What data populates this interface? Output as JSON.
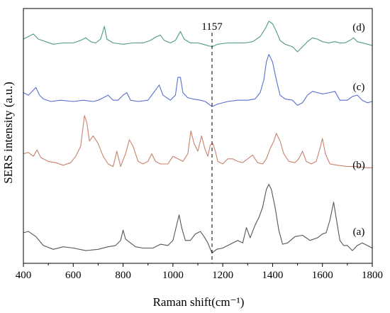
{
  "chart_data": {
    "type": "line",
    "xlabel": "Raman shift(cm⁻¹)",
    "ylabel": "SERS intensity (a.u.)",
    "xlim": [
      400,
      1800
    ],
    "ylim": [
      0,
      100
    ],
    "x_ticks": [
      "400",
      "600",
      "800",
      "1000",
      "1200",
      "1400",
      "1600",
      "1800"
    ],
    "grid": false,
    "annotation": {
      "label": "1157",
      "x": 1157
    },
    "series": [
      {
        "name": "(a)",
        "color": "#555555",
        "points": [
          [
            400,
            12
          ],
          [
            420,
            12.5
          ],
          [
            450,
            10.5
          ],
          [
            480,
            7
          ],
          [
            520,
            5.5
          ],
          [
            560,
            6.5
          ],
          [
            600,
            6
          ],
          [
            650,
            5
          ],
          [
            700,
            5.5
          ],
          [
            740,
            6.5
          ],
          [
            770,
            7
          ],
          [
            790,
            9
          ],
          [
            800,
            13
          ],
          [
            810,
            9.5
          ],
          [
            830,
            8
          ],
          [
            850,
            6.5
          ],
          [
            880,
            6
          ],
          [
            920,
            6
          ],
          [
            950,
            7.5
          ],
          [
            980,
            7
          ],
          [
            1000,
            9
          ],
          [
            1015,
            15
          ],
          [
            1025,
            19
          ],
          [
            1035,
            14
          ],
          [
            1050,
            9
          ],
          [
            1070,
            9
          ],
          [
            1090,
            11.5
          ],
          [
            1110,
            12.5
          ],
          [
            1125,
            10.5
          ],
          [
            1140,
            8
          ],
          [
            1157,
            4
          ],
          [
            1175,
            5.5
          ],
          [
            1200,
            6
          ],
          [
            1230,
            7.5
          ],
          [
            1260,
            9
          ],
          [
            1280,
            8
          ],
          [
            1295,
            14
          ],
          [
            1310,
            10
          ],
          [
            1330,
            15
          ],
          [
            1345,
            18
          ],
          [
            1360,
            22
          ],
          [
            1375,
            29
          ],
          [
            1385,
            31
          ],
          [
            1395,
            29
          ],
          [
            1410,
            22
          ],
          [
            1425,
            13
          ],
          [
            1440,
            7.5
          ],
          [
            1460,
            8
          ],
          [
            1490,
            10.5
          ],
          [
            1520,
            11
          ],
          [
            1550,
            9
          ],
          [
            1580,
            10
          ],
          [
            1600,
            11.5
          ],
          [
            1615,
            12
          ],
          [
            1630,
            17
          ],
          [
            1645,
            24
          ],
          [
            1655,
            18
          ],
          [
            1670,
            9
          ],
          [
            1685,
            7
          ],
          [
            1700,
            7
          ],
          [
            1720,
            5
          ],
          [
            1740,
            7
          ],
          [
            1760,
            8
          ],
          [
            1780,
            7
          ],
          [
            1800,
            6
          ]
        ]
      },
      {
        "name": "(b)",
        "color": "#c8826e",
        "points": [
          [
            400,
            43
          ],
          [
            420,
            43.5
          ],
          [
            440,
            42
          ],
          [
            455,
            44.5
          ],
          [
            470,
            41.5
          ],
          [
            500,
            40
          ],
          [
            530,
            39.5
          ],
          [
            560,
            38.5
          ],
          [
            590,
            39.5
          ],
          [
            610,
            42
          ],
          [
            630,
            46
          ],
          [
            645,
            58
          ],
          [
            655,
            55
          ],
          [
            665,
            48
          ],
          [
            680,
            50
          ],
          [
            700,
            47
          ],
          [
            720,
            42
          ],
          [
            740,
            39
          ],
          [
            760,
            38
          ],
          [
            775,
            44
          ],
          [
            790,
            38
          ],
          [
            810,
            43
          ],
          [
            825,
            48.5
          ],
          [
            840,
            46
          ],
          [
            860,
            40
          ],
          [
            880,
            39
          ],
          [
            900,
            40
          ],
          [
            915,
            43
          ],
          [
            930,
            40
          ],
          [
            950,
            39
          ],
          [
            980,
            39
          ],
          [
            1000,
            42
          ],
          [
            1020,
            41
          ],
          [
            1040,
            40
          ],
          [
            1060,
            43
          ],
          [
            1072,
            52
          ],
          [
            1085,
            47
          ],
          [
            1100,
            44
          ],
          [
            1115,
            50
          ],
          [
            1128,
            45
          ],
          [
            1140,
            42
          ],
          [
            1150,
            46.5
          ],
          [
            1160,
            47
          ],
          [
            1170,
            44
          ],
          [
            1180,
            40
          ],
          [
            1200,
            39
          ],
          [
            1220,
            41
          ],
          [
            1240,
            41
          ],
          [
            1260,
            40
          ],
          [
            1280,
            39.5
          ],
          [
            1300,
            41
          ],
          [
            1320,
            42.5
          ],
          [
            1340,
            39.5
          ],
          [
            1360,
            39
          ],
          [
            1375,
            41
          ],
          [
            1390,
            45
          ],
          [
            1405,
            48
          ],
          [
            1415,
            51
          ],
          [
            1430,
            48
          ],
          [
            1445,
            43
          ],
          [
            1465,
            40
          ],
          [
            1490,
            39.5
          ],
          [
            1505,
            41
          ],
          [
            1520,
            44
          ],
          [
            1535,
            40
          ],
          [
            1555,
            39
          ],
          [
            1575,
            40
          ],
          [
            1590,
            45
          ],
          [
            1600,
            49
          ],
          [
            1612,
            43
          ],
          [
            1630,
            39
          ],
          [
            1660,
            38.5
          ],
          [
            1700,
            38
          ],
          [
            1740,
            38
          ],
          [
            1780,
            37.5
          ],
          [
            1800,
            37.5
          ]
        ]
      },
      {
        "name": "(c)",
        "color": "#5a6fd0",
        "points": [
          [
            400,
            67
          ],
          [
            420,
            66
          ],
          [
            440,
            68
          ],
          [
            450,
            69
          ],
          [
            465,
            66
          ],
          [
            480,
            64.5
          ],
          [
            510,
            63.5
          ],
          [
            550,
            64
          ],
          [
            600,
            63.5
          ],
          [
            640,
            64
          ],
          [
            680,
            63.5
          ],
          [
            700,
            64
          ],
          [
            720,
            65
          ],
          [
            740,
            66
          ],
          [
            760,
            64
          ],
          [
            780,
            64
          ],
          [
            800,
            66
          ],
          [
            815,
            67
          ],
          [
            830,
            64
          ],
          [
            860,
            63.5
          ],
          [
            900,
            64
          ],
          [
            930,
            68
          ],
          [
            945,
            70
          ],
          [
            960,
            66
          ],
          [
            990,
            64
          ],
          [
            1010,
            66
          ],
          [
            1020,
            73
          ],
          [
            1030,
            73
          ],
          [
            1040,
            67
          ],
          [
            1060,
            65
          ],
          [
            1080,
            64.5
          ],
          [
            1110,
            64
          ],
          [
            1130,
            63.5
          ],
          [
            1157,
            61.5
          ],
          [
            1180,
            62.5
          ],
          [
            1220,
            63.5
          ],
          [
            1260,
            64
          ],
          [
            1300,
            64
          ],
          [
            1330,
            64.5
          ],
          [
            1350,
            67
          ],
          [
            1365,
            72
          ],
          [
            1375,
            79
          ],
          [
            1385,
            82
          ],
          [
            1400,
            79
          ],
          [
            1415,
            72
          ],
          [
            1430,
            66
          ],
          [
            1450,
            64.5
          ],
          [
            1480,
            64
          ],
          [
            1500,
            62
          ],
          [
            1520,
            63
          ],
          [
            1540,
            66
          ],
          [
            1560,
            67.5
          ],
          [
            1580,
            67
          ],
          [
            1600,
            66.5
          ],
          [
            1630,
            67
          ],
          [
            1650,
            67.5
          ],
          [
            1670,
            64
          ],
          [
            1700,
            64
          ],
          [
            1720,
            65.5
          ],
          [
            1740,
            66
          ],
          [
            1760,
            64
          ],
          [
            1780,
            63
          ],
          [
            1800,
            63.5
          ]
        ]
      },
      {
        "name": "(d)",
        "color": "#4d9b80",
        "points": [
          [
            400,
            88
          ],
          [
            420,
            89
          ],
          [
            440,
            90
          ],
          [
            460,
            88
          ],
          [
            490,
            87
          ],
          [
            520,
            86
          ],
          [
            560,
            86.5
          ],
          [
            600,
            86.5
          ],
          [
            630,
            87.5
          ],
          [
            650,
            88.5
          ],
          [
            670,
            87
          ],
          [
            690,
            86.5
          ],
          [
            710,
            88
          ],
          [
            725,
            93
          ],
          [
            735,
            88
          ],
          [
            760,
            86.5
          ],
          [
            800,
            86
          ],
          [
            840,
            86.5
          ],
          [
            880,
            86.5
          ],
          [
            910,
            87.5
          ],
          [
            935,
            89
          ],
          [
            950,
            89.5
          ],
          [
            965,
            87.5
          ],
          [
            990,
            86.5
          ],
          [
            1010,
            87.5
          ],
          [
            1030,
            91
          ],
          [
            1045,
            88
          ],
          [
            1070,
            86.5
          ],
          [
            1100,
            86.5
          ],
          [
            1120,
            86
          ],
          [
            1157,
            85
          ],
          [
            1180,
            86
          ],
          [
            1220,
            86.5
          ],
          [
            1260,
            86.5
          ],
          [
            1290,
            86.5
          ],
          [
            1320,
            87
          ],
          [
            1350,
            89
          ],
          [
            1370,
            92
          ],
          [
            1385,
            95
          ],
          [
            1400,
            94
          ],
          [
            1415,
            91
          ],
          [
            1430,
            87.5
          ],
          [
            1450,
            86
          ],
          [
            1480,
            85
          ],
          [
            1500,
            83
          ],
          [
            1520,
            85
          ],
          [
            1540,
            87
          ],
          [
            1560,
            88.5
          ],
          [
            1580,
            88
          ],
          [
            1600,
            87
          ],
          [
            1625,
            86.5
          ],
          [
            1650,
            87
          ],
          [
            1670,
            86.5
          ],
          [
            1690,
            86.5
          ],
          [
            1710,
            87.5
          ],
          [
            1725,
            88.5
          ],
          [
            1740,
            87
          ],
          [
            1760,
            86.5
          ],
          [
            1780,
            86
          ],
          [
            1800,
            85.5
          ]
        ]
      }
    ]
  }
}
